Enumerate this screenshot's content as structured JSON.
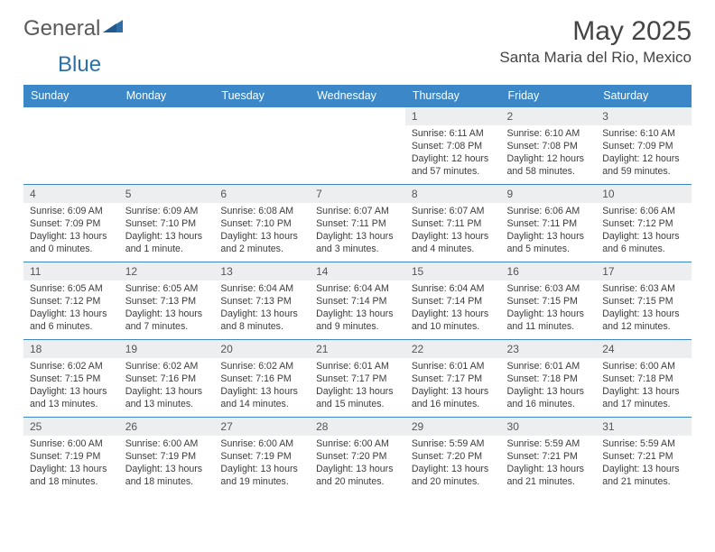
{
  "logo": {
    "text1": "General",
    "text2": "Blue"
  },
  "title": "May 2025",
  "location": "Santa Maria del Rio, Mexico",
  "colors": {
    "header_bg": "#3b87c8",
    "header_text": "#ffffff",
    "daynum_bg": "#eceef0",
    "border": "#3b87c8",
    "logo_gray": "#5a5a5a",
    "logo_blue": "#2f6fa8"
  },
  "day_headers": [
    "Sunday",
    "Monday",
    "Tuesday",
    "Wednesday",
    "Thursday",
    "Friday",
    "Saturday"
  ],
  "weeks": [
    [
      null,
      null,
      null,
      null,
      {
        "n": "1",
        "sr": "6:11 AM",
        "ss": "7:08 PM",
        "dl": "12 hours and 57 minutes."
      },
      {
        "n": "2",
        "sr": "6:10 AM",
        "ss": "7:08 PM",
        "dl": "12 hours and 58 minutes."
      },
      {
        "n": "3",
        "sr": "6:10 AM",
        "ss": "7:09 PM",
        "dl": "12 hours and 59 minutes."
      }
    ],
    [
      {
        "n": "4",
        "sr": "6:09 AM",
        "ss": "7:09 PM",
        "dl": "13 hours and 0 minutes."
      },
      {
        "n": "5",
        "sr": "6:09 AM",
        "ss": "7:10 PM",
        "dl": "13 hours and 1 minute."
      },
      {
        "n": "6",
        "sr": "6:08 AM",
        "ss": "7:10 PM",
        "dl": "13 hours and 2 minutes."
      },
      {
        "n": "7",
        "sr": "6:07 AM",
        "ss": "7:11 PM",
        "dl": "13 hours and 3 minutes."
      },
      {
        "n": "8",
        "sr": "6:07 AM",
        "ss": "7:11 PM",
        "dl": "13 hours and 4 minutes."
      },
      {
        "n": "9",
        "sr": "6:06 AM",
        "ss": "7:11 PM",
        "dl": "13 hours and 5 minutes."
      },
      {
        "n": "10",
        "sr": "6:06 AM",
        "ss": "7:12 PM",
        "dl": "13 hours and 6 minutes."
      }
    ],
    [
      {
        "n": "11",
        "sr": "6:05 AM",
        "ss": "7:12 PM",
        "dl": "13 hours and 6 minutes."
      },
      {
        "n": "12",
        "sr": "6:05 AM",
        "ss": "7:13 PM",
        "dl": "13 hours and 7 minutes."
      },
      {
        "n": "13",
        "sr": "6:04 AM",
        "ss": "7:13 PM",
        "dl": "13 hours and 8 minutes."
      },
      {
        "n": "14",
        "sr": "6:04 AM",
        "ss": "7:14 PM",
        "dl": "13 hours and 9 minutes."
      },
      {
        "n": "15",
        "sr": "6:04 AM",
        "ss": "7:14 PM",
        "dl": "13 hours and 10 minutes."
      },
      {
        "n": "16",
        "sr": "6:03 AM",
        "ss": "7:15 PM",
        "dl": "13 hours and 11 minutes."
      },
      {
        "n": "17",
        "sr": "6:03 AM",
        "ss": "7:15 PM",
        "dl": "13 hours and 12 minutes."
      }
    ],
    [
      {
        "n": "18",
        "sr": "6:02 AM",
        "ss": "7:15 PM",
        "dl": "13 hours and 13 minutes."
      },
      {
        "n": "19",
        "sr": "6:02 AM",
        "ss": "7:16 PM",
        "dl": "13 hours and 13 minutes."
      },
      {
        "n": "20",
        "sr": "6:02 AM",
        "ss": "7:16 PM",
        "dl": "13 hours and 14 minutes."
      },
      {
        "n": "21",
        "sr": "6:01 AM",
        "ss": "7:17 PM",
        "dl": "13 hours and 15 minutes."
      },
      {
        "n": "22",
        "sr": "6:01 AM",
        "ss": "7:17 PM",
        "dl": "13 hours and 16 minutes."
      },
      {
        "n": "23",
        "sr": "6:01 AM",
        "ss": "7:18 PM",
        "dl": "13 hours and 16 minutes."
      },
      {
        "n": "24",
        "sr": "6:00 AM",
        "ss": "7:18 PM",
        "dl": "13 hours and 17 minutes."
      }
    ],
    [
      {
        "n": "25",
        "sr": "6:00 AM",
        "ss": "7:19 PM",
        "dl": "13 hours and 18 minutes."
      },
      {
        "n": "26",
        "sr": "6:00 AM",
        "ss": "7:19 PM",
        "dl": "13 hours and 18 minutes."
      },
      {
        "n": "27",
        "sr": "6:00 AM",
        "ss": "7:19 PM",
        "dl": "13 hours and 19 minutes."
      },
      {
        "n": "28",
        "sr": "6:00 AM",
        "ss": "7:20 PM",
        "dl": "13 hours and 20 minutes."
      },
      {
        "n": "29",
        "sr": "5:59 AM",
        "ss": "7:20 PM",
        "dl": "13 hours and 20 minutes."
      },
      {
        "n": "30",
        "sr": "5:59 AM",
        "ss": "7:21 PM",
        "dl": "13 hours and 21 minutes."
      },
      {
        "n": "31",
        "sr": "5:59 AM",
        "ss": "7:21 PM",
        "dl": "13 hours and 21 minutes."
      }
    ]
  ],
  "labels": {
    "sunrise": "Sunrise:",
    "sunset": "Sunset:",
    "daylight": "Daylight:"
  }
}
